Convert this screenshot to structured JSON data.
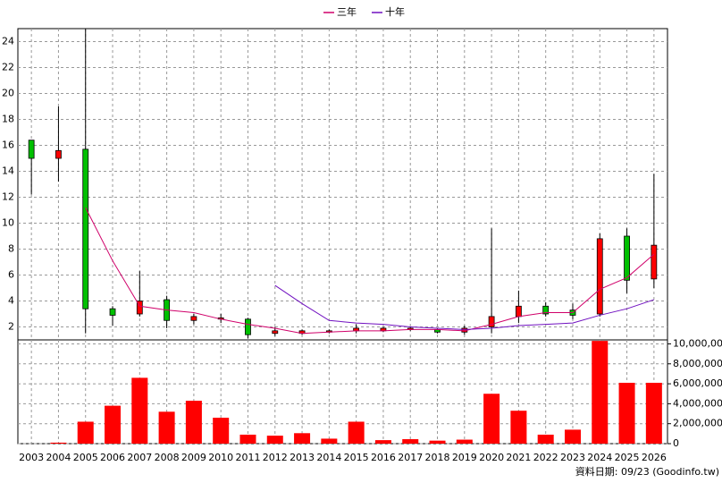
{
  "chart_data": {
    "type": "candlestick",
    "categories": [
      "2003",
      "2004",
      "2005",
      "2006",
      "2007",
      "2008",
      "2009",
      "2010",
      "2011",
      "2012",
      "2013",
      "2014",
      "2015",
      "2016",
      "2017",
      "2018",
      "2019",
      "2020",
      "2021",
      "2022",
      "2023",
      "2024",
      "2025",
      "2026"
    ],
    "open": [
      16.4,
      15.0,
      15.7,
      3.4,
      3.0,
      4.1,
      2.5,
      2.6,
      2.6,
      1.5,
      1.5,
      1.6,
      1.7,
      1.7,
      1.8,
      1.8,
      1.6,
      2.0,
      2.8,
      3.6,
      3.3,
      3.0,
      9.0,
      5.7
    ],
    "close": [
      15.0,
      15.6,
      3.4,
      2.9,
      4.0,
      2.5,
      2.8,
      2.7,
      1.4,
      1.7,
      1.7,
      1.7,
      1.9,
      1.9,
      1.9,
      1.6,
      1.9,
      2.8,
      3.6,
      3.0,
      2.9,
      8.8,
      5.6,
      8.3
    ],
    "high": [
      16.4,
      19.0,
      25.0,
      3.6,
      6.3,
      4.4,
      3.0,
      3.0,
      2.7,
      2.0,
      1.8,
      1.8,
      2.2,
      2.0,
      2.0,
      1.9,
      2.1,
      9.6,
      4.8,
      3.9,
      3.8,
      9.2,
      9.6,
      13.8
    ],
    "low": [
      12.2,
      13.2,
      1.5,
      2.1,
      2.8,
      1.9,
      2.2,
      2.3,
      1.1,
      1.3,
      1.4,
      1.5,
      1.5,
      1.6,
      1.7,
      1.5,
      1.4,
      1.5,
      2.3,
      2.8,
      2.6,
      2.8,
      4.6,
      5.0
    ],
    "up_color": "#ff0000",
    "down_color": "#00c000",
    "ylim": [
      1,
      25
    ],
    "yticks": [
      2,
      4,
      6,
      8,
      10,
      12,
      14,
      16,
      18,
      20,
      22,
      24
    ],
    "grid": true,
    "legend": "top",
    "lines": [
      {
        "name": "三年",
        "color": "#d0006a",
        "values": [
          null,
          null,
          11.2,
          7.1,
          3.6,
          3.3,
          3.1,
          2.6,
          2.2,
          1.9,
          1.5,
          1.6,
          1.7,
          1.7,
          1.8,
          1.8,
          1.7,
          2.2,
          2.8,
          3.1,
          3.1,
          4.9,
          5.8,
          7.6
        ]
      },
      {
        "name": "十年",
        "color": "#7010c0",
        "values": [
          null,
          null,
          null,
          null,
          null,
          null,
          null,
          null,
          null,
          5.2,
          3.8,
          2.5,
          2.3,
          2.2,
          2.0,
          1.9,
          1.8,
          1.9,
          2.1,
          2.2,
          2.3,
          2.9,
          3.4,
          4.1
        ]
      }
    ],
    "volume": {
      "type": "bar",
      "color": "#ff0000",
      "values": [
        0,
        100000,
        2200000,
        3800000,
        6600000,
        3200000,
        4300000,
        2600000,
        900000,
        800000,
        1050000,
        500000,
        2200000,
        350000,
        450000,
        300000,
        400000,
        5000000,
        3300000,
        900000,
        1400000,
        10300000,
        6100000,
        6100000
      ],
      "ylim": [
        0,
        10400000
      ],
      "yticks": [
        0,
        {
          "value": 2000000,
          "label": "2,000,000"
        },
        {
          "value": 4000000,
          "label": "4,000,000"
        },
        {
          "value": 6000000,
          "label": "6,000,000"
        },
        {
          "value": 8000000,
          "label": "8,000,000"
        },
        {
          "value": 10000000,
          "label": "10,000,000"
        }
      ]
    },
    "footer": "資料日期: 09/23  (Goodinfo.tw)"
  }
}
